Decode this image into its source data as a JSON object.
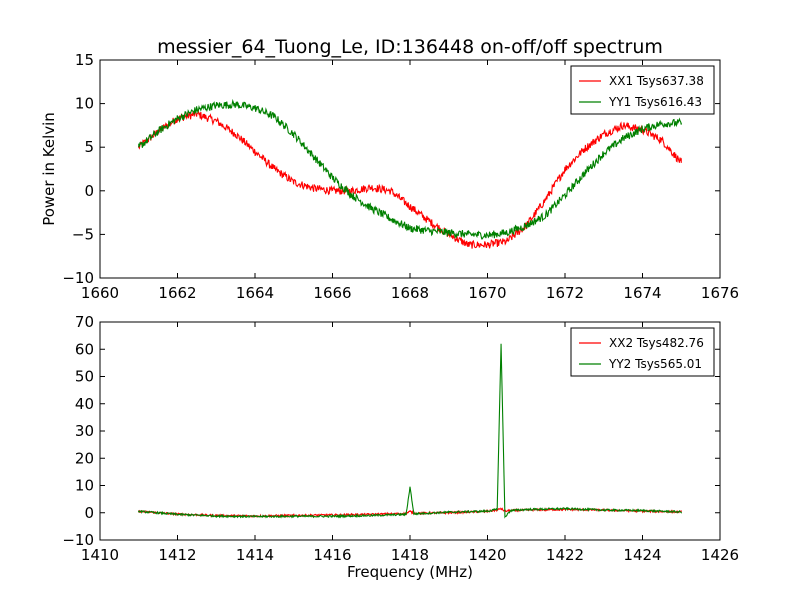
{
  "figure": {
    "title": "messier_64_Tuong_Le, ID:136448 on-off/off spectrum"
  },
  "chart_data": [
    {
      "type": "line",
      "ylabel": "Power in Kelvin",
      "xlabel": "",
      "xlim": [
        1660,
        1676
      ],
      "ylim": [
        -10,
        15
      ],
      "xticks": [
        1660,
        1662,
        1664,
        1666,
        1668,
        1670,
        1672,
        1674,
        1676
      ],
      "yticks": [
        -10,
        -5,
        0,
        5,
        10,
        15
      ],
      "grid": false,
      "legend": "top-right",
      "series": [
        {
          "name": "XX1 Tsys637.38",
          "color": "#ff0000",
          "x": [
            1661.0,
            1661.5,
            1662.0,
            1662.5,
            1663.0,
            1663.5,
            1664.0,
            1664.5,
            1665.0,
            1665.5,
            1666.0,
            1666.5,
            1667.0,
            1667.5,
            1668.0,
            1668.5,
            1669.0,
            1669.5,
            1670.0,
            1670.5,
            1671.0,
            1671.5,
            1672.0,
            1672.5,
            1673.0,
            1673.5,
            1674.0,
            1674.5,
            1675.0
          ],
          "y": [
            5.0,
            6.8,
            8.3,
            8.8,
            8.0,
            6.5,
            4.5,
            2.5,
            1.0,
            0.3,
            0.0,
            0.0,
            0.4,
            0.0,
            -1.8,
            -3.5,
            -5.0,
            -6.2,
            -6.2,
            -5.8,
            -4.0,
            -1.0,
            2.5,
            4.8,
            6.5,
            7.5,
            7.0,
            5.8,
            3.2
          ]
        },
        {
          "name": "YY1 Tsys616.43",
          "color": "#008000",
          "x": [
            1661.0,
            1661.5,
            1662.0,
            1662.5,
            1663.0,
            1663.5,
            1664.0,
            1664.5,
            1665.0,
            1665.5,
            1666.0,
            1666.5,
            1667.0,
            1667.5,
            1668.0,
            1668.5,
            1669.0,
            1669.5,
            1670.0,
            1670.5,
            1671.0,
            1671.5,
            1672.0,
            1672.5,
            1673.0,
            1673.5,
            1674.0,
            1674.5,
            1675.0
          ],
          "y": [
            5.0,
            6.8,
            8.3,
            9.3,
            9.8,
            9.9,
            9.5,
            8.5,
            6.5,
            4.0,
            1.5,
            -0.5,
            -2.0,
            -3.2,
            -4.3,
            -4.6,
            -4.8,
            -5.0,
            -5.1,
            -4.8,
            -4.0,
            -2.8,
            -0.5,
            2.0,
            4.3,
            6.0,
            7.1,
            7.7,
            7.8
          ]
        }
      ]
    },
    {
      "type": "line",
      "ylabel": "",
      "xlabel": "Frequency (MHz)",
      "xlim": [
        1410,
        1426
      ],
      "ylim": [
        -10,
        70
      ],
      "xticks": [
        1410,
        1412,
        1414,
        1416,
        1418,
        1420,
        1422,
        1424,
        1426
      ],
      "yticks": [
        -10,
        0,
        10,
        20,
        30,
        40,
        50,
        60,
        70
      ],
      "grid": false,
      "legend": "top-right",
      "series": [
        {
          "name": "XX2 Tsys482.76",
          "color": "#ff0000",
          "x": [
            1411.0,
            1412.0,
            1413.0,
            1414.0,
            1415.0,
            1416.0,
            1417.0,
            1417.9,
            1418.0,
            1418.1,
            1419.0,
            1420.0,
            1420.25,
            1420.35,
            1420.45,
            1420.6,
            1421.0,
            1422.0,
            1423.0,
            1424.0,
            1425.0
          ],
          "y": [
            0.5,
            -0.5,
            -1.0,
            -1.2,
            -1.0,
            -0.8,
            -0.6,
            -0.3,
            0.5,
            -0.2,
            0.0,
            0.5,
            1.0,
            1.5,
            0.6,
            0.8,
            1.0,
            1.2,
            1.0,
            0.6,
            0.3
          ]
        },
        {
          "name": "YY2 Tsys565.01",
          "color": "#008000",
          "x": [
            1411.0,
            1412.0,
            1413.0,
            1414.0,
            1415.0,
            1416.0,
            1417.0,
            1417.9,
            1418.0,
            1418.1,
            1419.0,
            1420.0,
            1420.25,
            1420.35,
            1420.45,
            1420.6,
            1421.0,
            1422.0,
            1423.0,
            1424.0,
            1425.0
          ],
          "y": [
            0.5,
            -0.6,
            -1.2,
            -1.4,
            -1.3,
            -1.3,
            -1.0,
            -0.6,
            9.5,
            -0.4,
            0.2,
            0.6,
            1.2,
            62.0,
            -1.5,
            0.8,
            1.2,
            1.5,
            1.0,
            0.8,
            0.3
          ]
        }
      ]
    }
  ]
}
